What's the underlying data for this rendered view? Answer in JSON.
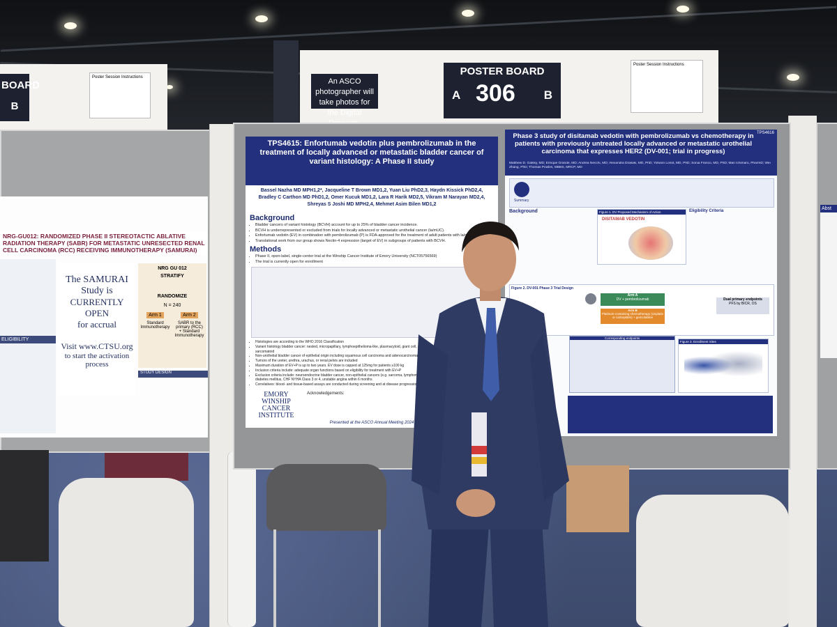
{
  "signs": {
    "poster_board_label": "POSTER BOARD",
    "poster_board_number": "306",
    "side_a": "A",
    "side_b": "B",
    "left_board_partial": "BOARD",
    "left_board_side": "B",
    "photographer_notice": "An ASCO photographer will take photos for the Digital Program.",
    "session_instructions": "Poster Session Instructions"
  },
  "poster_left": {
    "id": "TPS4615",
    "title": "TPS4615: Enfortumab vedotin plus pembrolizumab in the treatment of locally advanced or metastatic bladder cancer of variant histology: A Phase II study",
    "authors_line1": "Bassel Nazha MD MPH1,2*, Jacqueline T Brown MD1,2, Yuan Liu PhD2,3, Haydn Kissick PhD2,4,",
    "authors_line2": "Bradley C Carthon MD PhD1,2, Omer Kucuk MD1,2, Lara R Harik MD2,5, Vikram M Narayan MD2,4,",
    "authors_line3": "Shreyas S Joshi MD MPH2,4, Mehmet Asim Bilen MD1,2",
    "background_heading": "Background",
    "background_items": [
      "Bladder cancers of variant histology (BCVH) account for up to 25% of bladder cancer incidence.",
      "BCVH is underrepresented or excluded from trials for locally advanced or metastatic urothelial cancer (la/mUC).",
      "Enfortumab vedotin (EV) in combination with pembrolizumab (P) is FDA-approved for the treatment of adult patients with la/mUC.",
      "Translational work from our group shows Nectin-4 expression (target of EV) in subgroups of patients with BCVH."
    ],
    "methods_heading": "Methods",
    "methods_items": [
      "Phase II, open-label, single-center trial at the Winship Cancer Institute of Emory University (NCT05756569)",
      "The trial is currently open for enrollment"
    ],
    "histologies_items": [
      "Histologies are according to the WHO 2016 Classification",
      "Variant histology bladder cancer: nested, micropapillary, lymphoepithelioma-like, plasmacytoid, giant cell, poorly differentiated, lipid-rich, clear cell, sarcomatoid",
      "Non-urothelial bladder cancer of epithelial origin including squamous cell carcinoma and adenocarcinoma",
      "Tumors of the ureter, urethra, urachus, or renal pelvis are included",
      "Maximum duration of EV+P is up to two years. EV dose is capped at 125mg for patients ≥100 kg",
      "Inclusion criteria include: adequate organ functions based on eligibility for treatment with EV+P",
      "Exclusion criteria include: neuroendocrine bladder cancer, non-epithelial cancers (e.g. sarcoma, lymphoma), active autoimmune disease, uncontrolled diabetes mellitus, CHF NYHA Class 3 or 4, unstable angina within 6 months",
      "Correlatives: blood- and tissue-based assays are conducted during screening and at disease progression"
    ],
    "acknowledgements_heading": "Acknowledgements:",
    "footer": "Presented at the ASCO Annual Meeting 2024",
    "institution_1": "EMORY",
    "institution_2": "WINSHIP",
    "institution_3": "CANCER",
    "institution_4": "INSTITUTE"
  },
  "poster_right": {
    "id": "TPS4616",
    "title": "Phase 3 study of disitamab vedotin with pembrolizumab vs chemotherapy in patients with previously untreated locally advanced or metastatic urothelial carcinoma that expresses HER2 (DV-001; trial in progress)",
    "authors": "Matthew D. Galsky, MD; Enrique Grande, MD; Andrea Necchi, MD; Alexandra Drakaki, MD, PhD; Yohann Loriot, MD, PhD; Sonia Franco, MD, PhD; Mari Ichimaru, PharmD; Wei Zhang, PhD; Thomas Powles, MBBS, MRCP, MD",
    "summary_heading": "Summary",
    "background_heading": "Background",
    "figure1_caption": "Figure 1. DV Proposed Mechanism of Action",
    "figure1_label": "DISITAMAB VEDOTIN",
    "eligibility_heading": "Eligibility Criteria",
    "schema_heading": "Figure 2. DV-001 Phase 3 Trial Design",
    "arm_a": "Arm A",
    "arm_a_detail": "DV + pembrolizumab",
    "arm_b": "Arm B",
    "arm_b_detail": "Platinum-containing chemotherapy (cisplatin or carboplatin) + gemcitabine",
    "endpoints": "Dual primary endpoints",
    "endpoints_detail": "PFS by BICR, OS",
    "corresponding_endpoints": "Corresponding endpoints",
    "figure3_caption": "Figure 3. Enrollment Sites"
  },
  "poster_far_left": {
    "title": "NRG-GU012: RANDOMIZED PHASE II STEREOTACTIC ABLATIVE RADIATION THERAPY (SABR) FOR METASTATIC UNRESECTED RENAL CELL CARCINOMA (RCC) RECEIVING IMMUNOTHERAPY (SAMURAI)",
    "study_open_1": "The SAMURAI",
    "study_open_2": "Study is",
    "study_open_3": "CURRENTLY OPEN",
    "study_open_4": "for accrual",
    "visit_line": "Visit www.CTSU.org",
    "visit_line2": "to start the activation",
    "visit_line3": "process",
    "nrg_label": "NRG GU 012",
    "stratify": "STRATIFY",
    "randomize": "RANDOMIZE",
    "arm1": "Arm 1",
    "arm2": "Arm 2",
    "arm1_detail": "Standard Immunotherapy",
    "arm2_detail": "SABR to the primary (RCC) + Standard Immunotherapy",
    "n_label": "N = 240",
    "eligibility": "ELIGIBILITY",
    "study_design": "STUDY DESIGN"
  },
  "poster_far_right": {
    "partial_text": "Abst"
  },
  "colors": {
    "poster_navy": "#23307e",
    "sign_dark": "#1e2130",
    "carpet": "#46557c",
    "suit": "#2f3b63"
  }
}
